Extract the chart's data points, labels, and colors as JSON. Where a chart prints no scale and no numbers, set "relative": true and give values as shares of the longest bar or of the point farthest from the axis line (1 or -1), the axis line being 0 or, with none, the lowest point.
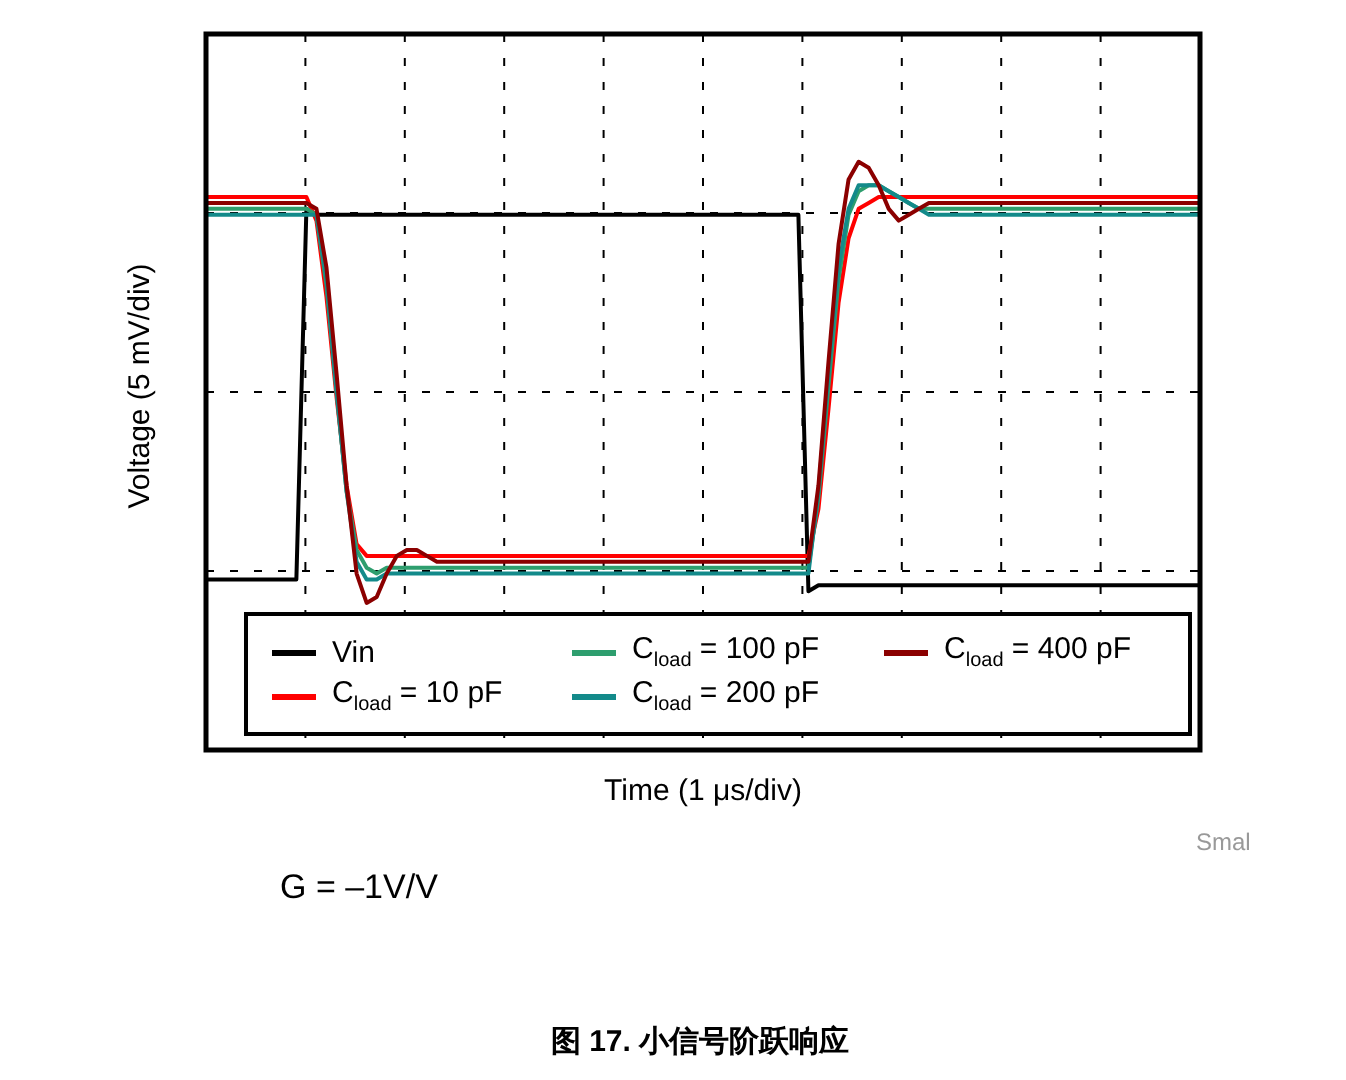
{
  "chart_data": {
    "type": "line",
    "relative": true,
    "ylabel": "Voltage (5 mV/div)",
    "xlabel": "Time (1 μs/div)",
    "title": "图 17. 小信号阶跃响应",
    "annotations": [
      "G = –1V/V",
      "Smal"
    ],
    "grid": true,
    "legend": "bottom",
    "line_style": "solid",
    "marker": "none",
    "tick_labels": false,
    "categories": [
      null,
      null,
      null,
      null,
      null,
      null,
      null,
      null,
      null,
      null,
      null,
      null,
      null,
      null,
      null,
      null,
      null,
      null,
      null,
      null,
      null,
      null,
      null,
      null,
      null,
      null,
      null,
      null,
      null,
      null,
      null,
      null,
      null,
      null,
      null,
      null,
      null,
      null,
      null,
      null,
      null,
      null,
      null,
      null,
      null,
      null,
      null,
      null,
      null,
      null,
      null,
      null,
      null,
      null,
      null,
      null,
      null,
      null,
      null,
      null,
      null,
      null,
      null,
      null,
      null,
      null,
      null,
      null,
      null,
      null,
      null,
      null,
      null,
      null,
      null,
      null,
      null,
      null,
      null,
      null,
      null,
      null,
      null,
      null,
      null,
      null,
      null,
      null,
      null,
      null,
      null,
      null,
      null,
      null,
      null,
      null,
      null,
      null,
      null,
      null
    ],
    "series": [
      {
        "name": "Vin",
        "color": "#000000",
        "values": [
          0.29,
          0.29,
          0.29,
          0.29,
          0.29,
          0.29,
          0.29,
          0.29,
          0.29,
          0.29,
          0.92,
          0.91,
          0.91,
          0.91,
          0.91,
          0.91,
          0.91,
          0.91,
          0.91,
          0.91,
          0.91,
          0.91,
          0.91,
          0.91,
          0.91,
          0.91,
          0.91,
          0.91,
          0.91,
          0.91,
          0.91,
          0.91,
          0.91,
          0.91,
          0.91,
          0.91,
          0.91,
          0.91,
          0.91,
          0.91,
          0.91,
          0.91,
          0.91,
          0.91,
          0.91,
          0.91,
          0.91,
          0.91,
          0.91,
          0.91,
          0.91,
          0.91,
          0.91,
          0.91,
          0.91,
          0.91,
          0.91,
          0.91,
          0.91,
          0.91,
          0.27,
          0.28,
          0.28,
          0.28,
          0.28,
          0.28,
          0.28,
          0.28,
          0.28,
          0.28,
          0.28,
          0.28,
          0.28,
          0.28,
          0.28,
          0.28,
          0.28,
          0.28,
          0.28,
          0.28,
          0.28,
          0.28,
          0.28,
          0.28,
          0.28,
          0.28,
          0.28,
          0.28,
          0.28,
          0.28,
          0.28,
          0.28,
          0.28,
          0.28,
          0.28,
          0.28,
          0.28,
          0.28,
          0.28,
          0.28
        ]
      },
      {
        "name": "C$_{load}$ = 10 pF",
        "color": "#ff0000",
        "values": [
          0.94,
          0.94,
          0.94,
          0.94,
          0.94,
          0.94,
          0.94,
          0.94,
          0.94,
          0.94,
          0.94,
          0.9,
          0.77,
          0.6,
          0.45,
          0.35,
          0.33,
          0.33,
          0.33,
          0.33,
          0.33,
          0.33,
          0.33,
          0.33,
          0.33,
          0.33,
          0.33,
          0.33,
          0.33,
          0.33,
          0.33,
          0.33,
          0.33,
          0.33,
          0.33,
          0.33,
          0.33,
          0.33,
          0.33,
          0.33,
          0.33,
          0.33,
          0.33,
          0.33,
          0.33,
          0.33,
          0.33,
          0.33,
          0.33,
          0.33,
          0.33,
          0.33,
          0.33,
          0.33,
          0.33,
          0.33,
          0.33,
          0.33,
          0.33,
          0.33,
          0.33,
          0.41,
          0.58,
          0.76,
          0.87,
          0.92,
          0.93,
          0.94,
          0.94,
          0.94,
          0.94,
          0.94,
          0.94,
          0.94,
          0.94,
          0.94,
          0.94,
          0.94,
          0.94,
          0.94,
          0.94,
          0.94,
          0.94,
          0.94,
          0.94,
          0.94,
          0.94,
          0.94,
          0.94,
          0.94,
          0.94,
          0.94,
          0.94,
          0.94,
          0.94,
          0.94,
          0.94,
          0.94,
          0.94,
          0.94
        ]
      },
      {
        "name": "C$_{load}$ = 100 pF",
        "color": "#2e9e6e",
        "values": [
          0.92,
          0.92,
          0.92,
          0.92,
          0.92,
          0.92,
          0.92,
          0.92,
          0.92,
          0.92,
          0.92,
          0.91,
          0.79,
          0.61,
          0.44,
          0.34,
          0.31,
          0.3,
          0.31,
          0.31,
          0.31,
          0.31,
          0.31,
          0.31,
          0.31,
          0.31,
          0.31,
          0.31,
          0.31,
          0.31,
          0.31,
          0.31,
          0.31,
          0.31,
          0.31,
          0.31,
          0.31,
          0.31,
          0.31,
          0.31,
          0.31,
          0.31,
          0.31,
          0.31,
          0.31,
          0.31,
          0.31,
          0.31,
          0.31,
          0.31,
          0.31,
          0.31,
          0.31,
          0.31,
          0.31,
          0.31,
          0.31,
          0.31,
          0.31,
          0.31,
          0.31,
          0.43,
          0.62,
          0.8,
          0.91,
          0.95,
          0.96,
          0.96,
          0.95,
          0.94,
          0.93,
          0.92,
          0.92,
          0.92,
          0.92,
          0.92,
          0.92,
          0.92,
          0.92,
          0.92,
          0.92,
          0.92,
          0.92,
          0.92,
          0.92,
          0.92,
          0.92,
          0.92,
          0.92,
          0.92,
          0.92,
          0.92,
          0.92,
          0.92,
          0.92,
          0.92,
          0.92,
          0.92,
          0.92,
          0.92
        ]
      },
      {
        "name": "C$_{load}$ = 200 pF",
        "color": "#138a8a",
        "values": [
          0.91,
          0.91,
          0.91,
          0.91,
          0.91,
          0.91,
          0.91,
          0.91,
          0.91,
          0.91,
          0.91,
          0.91,
          0.8,
          0.61,
          0.44,
          0.32,
          0.29,
          0.29,
          0.3,
          0.3,
          0.3,
          0.3,
          0.3,
          0.3,
          0.3,
          0.3,
          0.3,
          0.3,
          0.3,
          0.3,
          0.3,
          0.3,
          0.3,
          0.3,
          0.3,
          0.3,
          0.3,
          0.3,
          0.3,
          0.3,
          0.3,
          0.3,
          0.3,
          0.3,
          0.3,
          0.3,
          0.3,
          0.3,
          0.3,
          0.3,
          0.3,
          0.3,
          0.3,
          0.3,
          0.3,
          0.3,
          0.3,
          0.3,
          0.3,
          0.3,
          0.3,
          0.44,
          0.64,
          0.82,
          0.92,
          0.96,
          0.96,
          0.96,
          0.95,
          0.94,
          0.93,
          0.92,
          0.91,
          0.91,
          0.91,
          0.91,
          0.91,
          0.91,
          0.91,
          0.91,
          0.91,
          0.91,
          0.91,
          0.91,
          0.91,
          0.91,
          0.91,
          0.91,
          0.91,
          0.91,
          0.91,
          0.91,
          0.91,
          0.91,
          0.91,
          0.91,
          0.91,
          0.91,
          0.91,
          0.91
        ]
      },
      {
        "name": "C$_{load}$ = 400 pF",
        "color": "#8b0000",
        "values": [
          0.93,
          0.93,
          0.93,
          0.93,
          0.93,
          0.93,
          0.93,
          0.93,
          0.93,
          0.93,
          0.93,
          0.92,
          0.82,
          0.64,
          0.45,
          0.3,
          0.25,
          0.26,
          0.3,
          0.33,
          0.34,
          0.34,
          0.33,
          0.32,
          0.32,
          0.32,
          0.32,
          0.32,
          0.32,
          0.32,
          0.32,
          0.32,
          0.32,
          0.32,
          0.32,
          0.32,
          0.32,
          0.32,
          0.32,
          0.32,
          0.32,
          0.32,
          0.32,
          0.32,
          0.32,
          0.32,
          0.32,
          0.32,
          0.32,
          0.32,
          0.32,
          0.32,
          0.32,
          0.32,
          0.32,
          0.32,
          0.32,
          0.32,
          0.32,
          0.32,
          0.32,
          0.45,
          0.66,
          0.86,
          0.97,
          1.0,
          0.99,
          0.96,
          0.92,
          0.9,
          0.91,
          0.92,
          0.93,
          0.93,
          0.93,
          0.93,
          0.93,
          0.93,
          0.93,
          0.93,
          0.93,
          0.93,
          0.93,
          0.93,
          0.93,
          0.93,
          0.93,
          0.93,
          0.93,
          0.93,
          0.93,
          0.93,
          0.93,
          0.93,
          0.93,
          0.93,
          0.93,
          0.93,
          0.93,
          0.93
        ]
      }
    ]
  }
}
